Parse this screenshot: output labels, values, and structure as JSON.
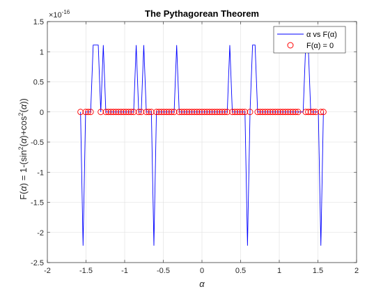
{
  "chart_data": {
    "type": "line",
    "title": "The Pythagorean Theorem",
    "xlabel": "α",
    "ylabel_parts": [
      "F(",
      "α",
      ") = 1-(sin",
      "2",
      "(",
      "α",
      ")+cos",
      "2",
      "(",
      "α",
      "))"
    ],
    "y_exponent_label": "×10",
    "y_exponent_power": "-16",
    "xlim": [
      -2,
      2
    ],
    "ylim": [
      -2.5,
      1.5
    ],
    "x_ticks": [
      -2,
      -1.5,
      -1,
      -0.5,
      0,
      0.5,
      1,
      1.5,
      2
    ],
    "x_tick_labels": [
      "-2",
      "-1.5",
      "-1",
      "-0.5",
      "0",
      "0.5",
      "1",
      "1.5",
      "2"
    ],
    "y_ticks": [
      -2.5,
      -2,
      -1.5,
      -1,
      -0.5,
      0,
      0.5,
      1,
      1.5
    ],
    "y_tick_labels": [
      "-2.5",
      "-2",
      "-1.5",
      "-1",
      "-0.5",
      "0",
      "0.5",
      "1",
      "1.5"
    ],
    "grid": true,
    "legend_position": "top-right",
    "series": [
      {
        "name": "α vs F(α)",
        "style": "line",
        "color": "#0000ff",
        "x": [
          -1.5708,
          -1.5381,
          -1.5054,
          -1.4726,
          -1.4399,
          -1.4072,
          -1.3744,
          -1.3417,
          -1.309,
          -1.2763,
          -1.2435,
          -1.2108,
          -1.1781,
          -1.1454,
          -1.1126,
          -1.0799,
          -1.0472,
          -1.0145,
          -0.9817,
          -0.949,
          -0.9163,
          -0.8836,
          -0.8508,
          -0.8181,
          -0.7854,
          -0.7527,
          -0.7199,
          -0.6872,
          -0.6545,
          -0.6218,
          -0.589,
          -0.5563,
          -0.5236,
          -0.4909,
          -0.4581,
          -0.4254,
          -0.3927,
          -0.36,
          -0.3272,
          -0.2945,
          -0.2618,
          -0.2291,
          -0.1963,
          -0.1636,
          -0.1309,
          -0.0982,
          -0.0654,
          -0.0327,
          0.0,
          0.0327,
          0.0654,
          0.0982,
          0.1309,
          0.1636,
          0.1963,
          0.2291,
          0.2618,
          0.2945,
          0.3272,
          0.36,
          0.3927,
          0.4254,
          0.4581,
          0.4909,
          0.5236,
          0.5563,
          0.589,
          0.6218,
          0.6545,
          0.6872,
          0.7199,
          0.7527,
          0.7854,
          0.8181,
          0.8508,
          0.8836,
          0.9163,
          0.949,
          0.9817,
          1.0145,
          1.0472,
          1.0799,
          1.1126,
          1.1454,
          1.1781,
          1.2108,
          1.2435,
          1.2763,
          1.309,
          1.3417,
          1.3744,
          1.4072,
          1.4399,
          1.4726,
          1.5054,
          1.5381,
          1.5708
        ],
        "y": [
          0,
          -2.22,
          0,
          0,
          0,
          1.11,
          1.11,
          1.11,
          0,
          1.11,
          0,
          0,
          0,
          0,
          0,
          0,
          0,
          0,
          0,
          0,
          0,
          0,
          1.11,
          0,
          0,
          1.11,
          0,
          0,
          0,
          -2.22,
          0,
          0,
          0,
          0,
          0,
          0,
          0,
          0,
          1.11,
          0,
          0,
          0,
          0,
          0,
          0,
          0,
          0,
          0,
          0,
          0,
          0,
          0,
          0,
          0,
          0,
          0,
          0,
          0,
          0,
          1.11,
          0,
          0,
          0,
          0,
          0,
          0,
          -2.22,
          0,
          1.11,
          1.11,
          0,
          0,
          0,
          0,
          0,
          0,
          0,
          0,
          0,
          0,
          0,
          0,
          0,
          0,
          0,
          0,
          0,
          0,
          0,
          1.11,
          1.11,
          0,
          0,
          0,
          0,
          -2.22,
          0
        ]
      },
      {
        "name": "F(α) = 0",
        "style": "marker-circle",
        "color": "#ff0000",
        "x": [
          -1.5708,
          -1.5054,
          -1.4726,
          -1.4399,
          -1.309,
          -1.2435,
          -1.2108,
          -1.1781,
          -1.1454,
          -1.1126,
          -1.0799,
          -1.0472,
          -1.0145,
          -0.9817,
          -0.949,
          -0.9163,
          -0.8836,
          -0.8181,
          -0.7854,
          -0.7199,
          -0.6872,
          -0.6545,
          -0.589,
          -0.5563,
          -0.5236,
          -0.4909,
          -0.4581,
          -0.4254,
          -0.3927,
          -0.36,
          -0.2945,
          -0.2618,
          -0.2291,
          -0.1963,
          -0.1636,
          -0.1309,
          -0.0982,
          -0.0654,
          -0.0327,
          0.0,
          0.0327,
          0.0654,
          0.0982,
          0.1309,
          0.1636,
          0.1963,
          0.2291,
          0.2618,
          0.2945,
          0.3272,
          0.3927,
          0.4254,
          0.4581,
          0.4909,
          0.5236,
          0.5563,
          0.6218,
          0.7199,
          0.7527,
          0.7854,
          0.8181,
          0.8508,
          0.8836,
          0.9163,
          0.949,
          0.9817,
          1.0145,
          1.0472,
          1.0799,
          1.1126,
          1.1454,
          1.1781,
          1.2108,
          1.2435,
          1.3417,
          1.3744,
          1.4072,
          1.4399,
          1.4726,
          1.5381,
          1.5708
        ]
      }
    ]
  }
}
